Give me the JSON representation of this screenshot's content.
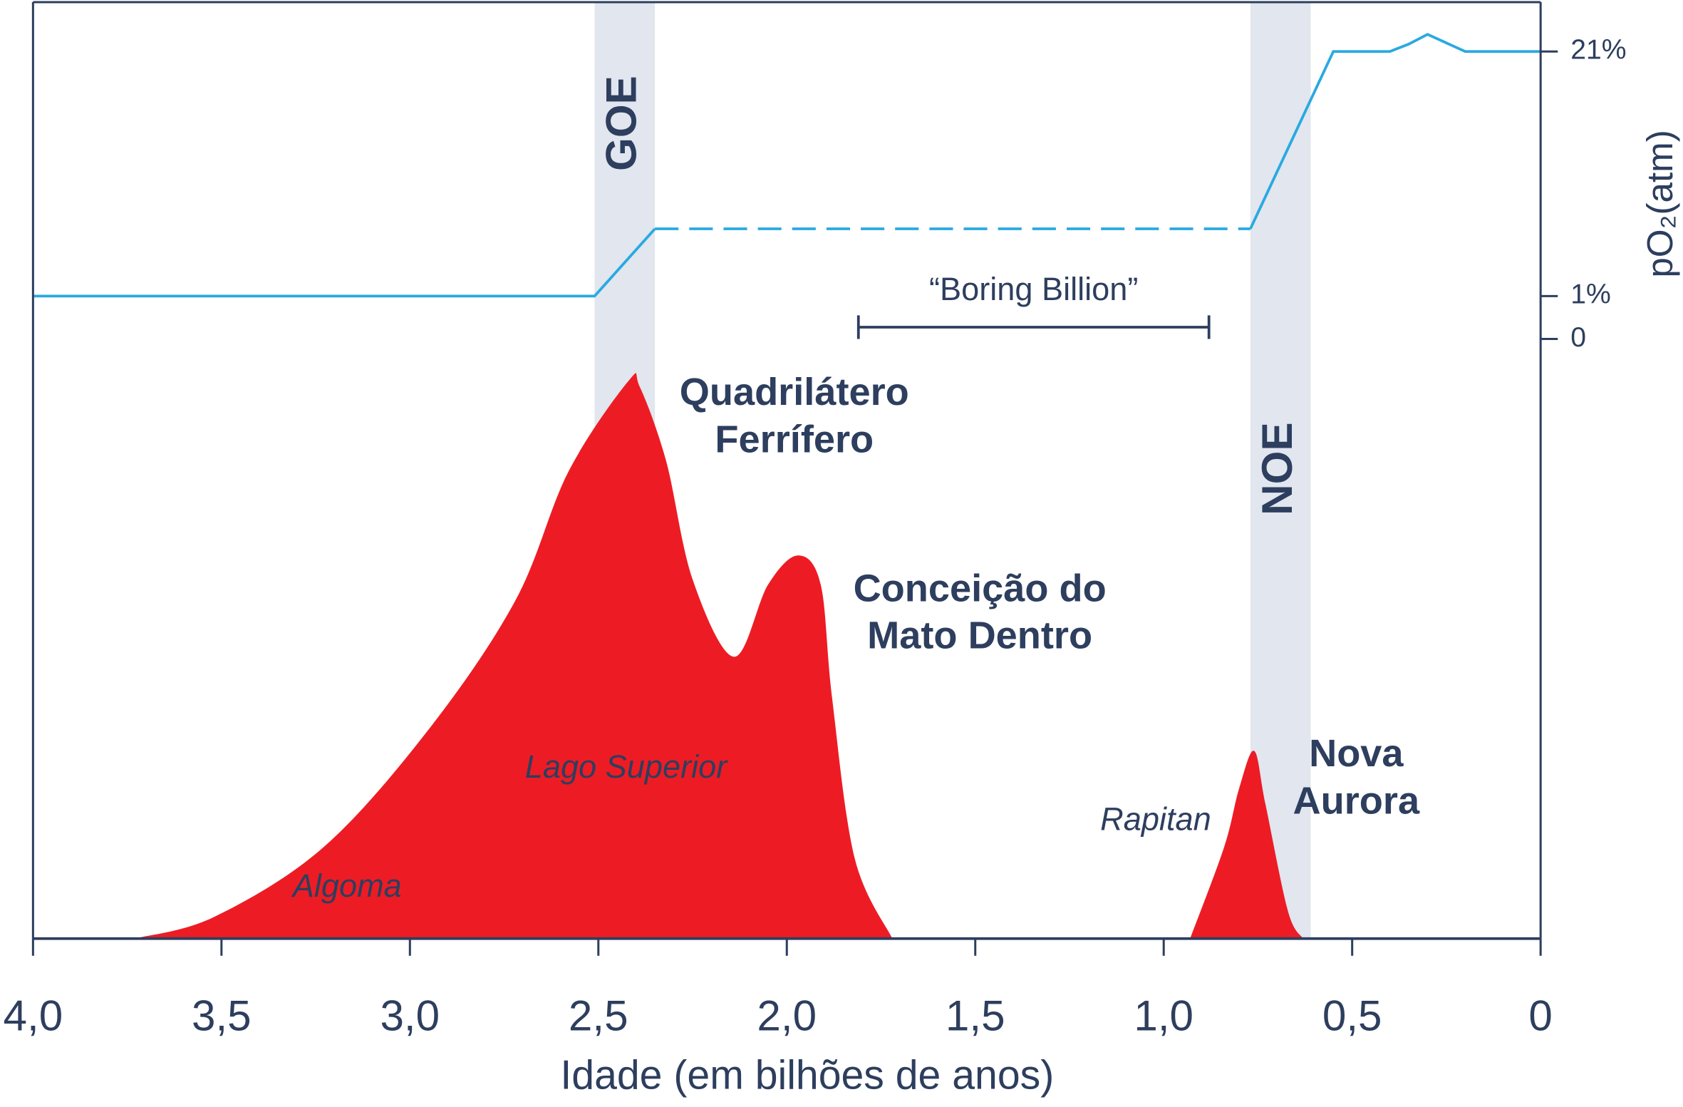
{
  "chart_data": {
    "type": "area",
    "x_label": "Idade (em bilhões de anos)",
    "y2_label": "pO₂(atm)",
    "xlim": [
      4,
      0
    ],
    "xticks": [
      {
        "value": 4,
        "label": "4,0"
      },
      {
        "value": 3.5,
        "label": "3,5"
      },
      {
        "value": 3,
        "label": "3,0"
      },
      {
        "value": 2.5,
        "label": "2,5"
      },
      {
        "value": 2,
        "label": "2,0"
      },
      {
        "value": 1.5,
        "label": "1,5"
      },
      {
        "value": 1,
        "label": "1,0"
      },
      {
        "value": 0.5,
        "label": "0,5"
      },
      0
    ],
    "ylim": [
      0,
      100
    ],
    "y2ticks": [
      0,
      {
        "value": 1,
        "label": "1%"
      },
      {
        "value": 21,
        "label": "21%"
      }
    ],
    "series": [
      {
        "color": "#ed1c24",
        "x": [
          3.73,
          3.52,
          3.23,
          2.95,
          2.72,
          2.58,
          2.42,
          2.39,
          2.32,
          2.25,
          2.14,
          2.05,
          1.97,
          1.91,
          1.88,
          1.82,
          1.72,
          null,
          0.93,
          0.84,
          0.8,
          0.76,
          0.73,
          0.67,
          0.63
        ],
        "values": [
          0,
          3.6,
          15.2,
          34.9,
          56.4,
          77.8,
          93,
          92,
          79.6,
          59.9,
          47,
          59,
          63.9,
          59,
          40.2,
          13.4,
          0,
          null,
          0,
          15.2,
          25,
          31.3,
          22.4,
          4.5,
          0
        ]
      },
      {
        "axis": "y2",
        "color": "#29a9e0",
        "dash": false,
        "x": [
          4,
          2.51,
          2.35
        ],
        "values": [
          1,
          1,
          6.5
        ]
      },
      {
        "axis": "y2",
        "color": "#29a9e0",
        "dash": true,
        "x": [
          2.35,
          0.77
        ],
        "values": [
          6.5,
          6.5
        ]
      },
      {
        "axis": "y2",
        "color": "#29a9e0",
        "dash": false,
        "x": [
          0.77,
          0.55,
          0.4,
          0.35,
          0.3,
          0.2,
          0
        ],
        "values": [
          6.5,
          21,
          21,
          21.6,
          22.4,
          21,
          21
        ]
      }
    ],
    "bands": [
      {
        "label": "GOE",
        "from": 2.51,
        "to": 2.35,
        "color": "#e1e6ef"
      },
      {
        "label": "NOE",
        "from": 0.77,
        "to": 0.61,
        "color": "#e1e6ef"
      }
    ],
    "bracket": {
      "label": "“Boring Billion”",
      "from": 1.81,
      "to": 0.88
    },
    "annotations": [
      {
        "lines": [
          "Quadrilátero",
          "Ferrífero"
        ],
        "style": "bold"
      },
      {
        "lines": [
          "Conceição do",
          "Mato Dentro"
        ],
        "style": "bold"
      },
      {
        "lines": [
          "Nova",
          "Aurora"
        ],
        "style": "bold"
      },
      {
        "lines": [
          "Lago Superior"
        ],
        "style": "italic"
      },
      {
        "lines": [
          "Algoma"
        ],
        "style": "italic"
      },
      {
        "lines": [
          "Rapitan"
        ],
        "style": "italic"
      }
    ]
  }
}
